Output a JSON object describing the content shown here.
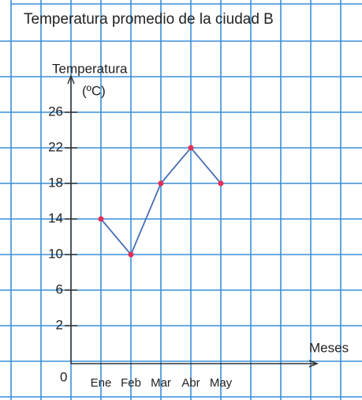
{
  "chart_data": {
    "type": "line",
    "title": "Temperatura promedio de la ciudad B",
    "y_label": "Temperatura",
    "y_unit": "(ºC)",
    "x_label": "Meses",
    "origin_label": "0",
    "categories": [
      "Ene",
      "Feb",
      "Mar",
      "Abr",
      "May"
    ],
    "series": [
      {
        "name": "Temperatura",
        "color": "#4a6fb5",
        "marker_color": "#e0305a",
        "values": [
          14,
          10,
          18,
          22,
          18
        ]
      }
    ],
    "ylim": [
      0,
      28
    ],
    "yticks": [
      2,
      6,
      10,
      14,
      18,
      22,
      26
    ]
  }
}
